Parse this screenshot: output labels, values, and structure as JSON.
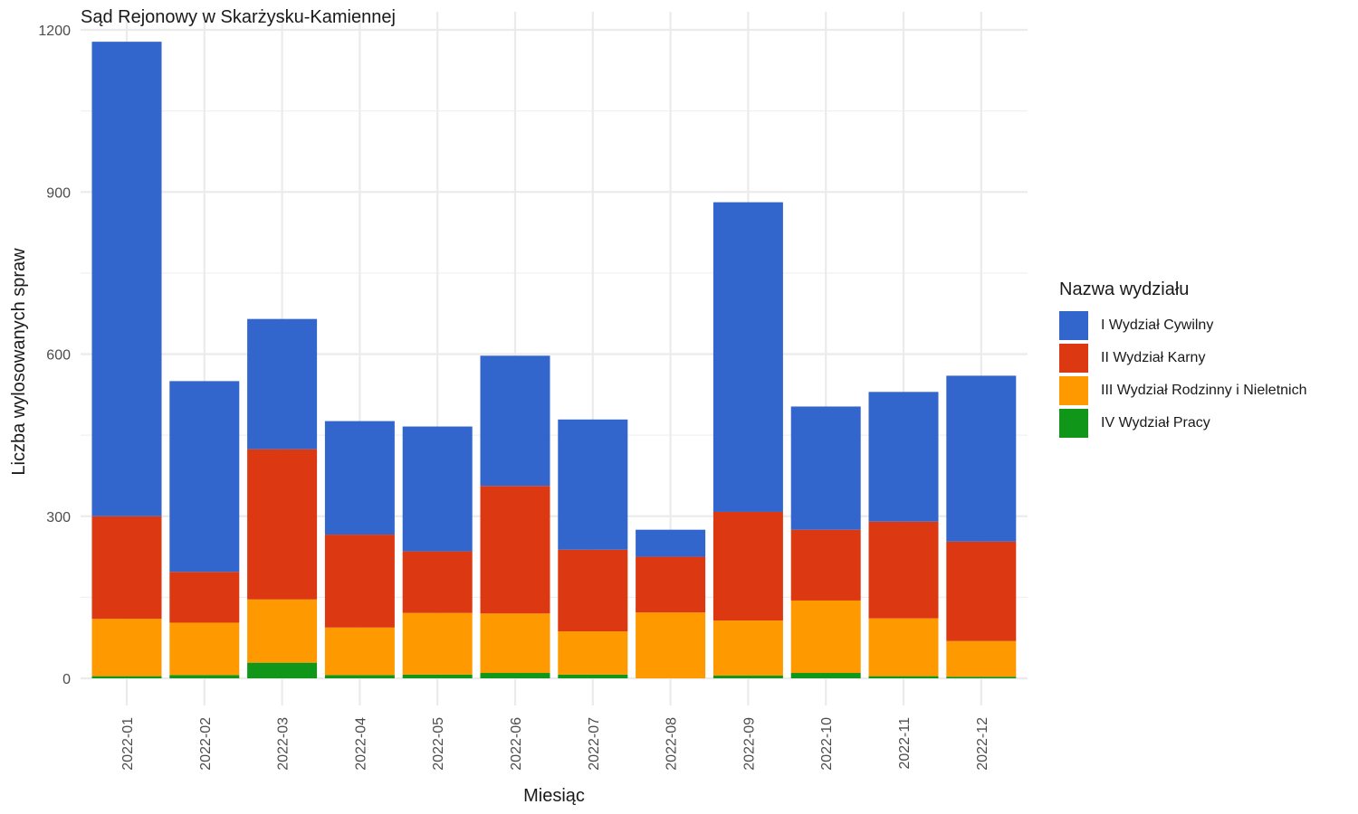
{
  "chart_data": {
    "type": "bar",
    "stacked": true,
    "title": "Sąd Rejonowy w Skarżysku-Kamiennej",
    "xlabel": "Miesiąc",
    "ylabel": "Liczba wylosowanych spraw",
    "ylim": [
      0,
      1200
    ],
    "yticks": [
      "0",
      "300",
      "600",
      "900",
      "1200"
    ],
    "grid": true,
    "legend_position": "right",
    "legend_title": "Nazwa wydziału",
    "categories": [
      "2022-01",
      "2022-02",
      "2022-03",
      "2022-04",
      "2022-05",
      "2022-06",
      "2022-07",
      "2022-08",
      "2022-09",
      "2022-10",
      "2022-11",
      "2022-12"
    ],
    "series": [
      {
        "name": "IV Wydział Pracy",
        "color": "#109618",
        "values": [
          4,
          6,
          29,
          6,
          7,
          10,
          7,
          0,
          5,
          10,
          4,
          3
        ]
      },
      {
        "name": "III Wydział Rodzinny i Nieletnich",
        "color": "#FF9900",
        "values": [
          106,
          97,
          117,
          88,
          114,
          110,
          80,
          122,
          102,
          134,
          107,
          66
        ]
      },
      {
        "name": "II Wydział Karny",
        "color": "#DC3912",
        "values": [
          190,
          94,
          278,
          172,
          114,
          236,
          151,
          103,
          201,
          131,
          179,
          184
        ]
      },
      {
        "name": "I Wydział Cywilny",
        "color": "#3366CC",
        "values": [
          878,
          353,
          241,
          210,
          231,
          241,
          241,
          50,
          573,
          228,
          240,
          307
        ]
      }
    ]
  }
}
